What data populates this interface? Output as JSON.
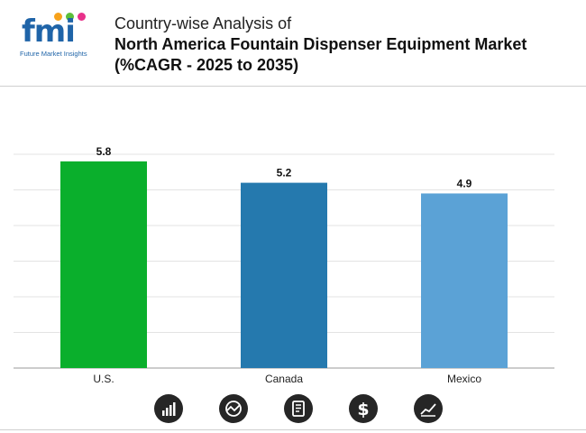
{
  "header": {
    "logo_text": "fmi",
    "logo_subtitle": "Future Market Insights",
    "title_line1": "Country-wise Analysis of",
    "title_line2": "North America Fountain Dispenser Equipment Market",
    "title_line3": "(%CAGR - 2025 to 2035)"
  },
  "colors": {
    "brand": "#1f64a8",
    "grid": "#e3e3e3",
    "axis": "#9a9a9a"
  },
  "chart_data": {
    "type": "bar",
    "title": "North America Fountain Dispenser Equipment Market (%CAGR - 2025 to 2035)",
    "categories": [
      "U.S.",
      "Canada",
      "Mexico"
    ],
    "values": [
      5.8,
      5.2,
      4.9
    ],
    "bar_colors": [
      "#0aaf2c",
      "#2579ae",
      "#5ba2d6"
    ],
    "xlabel": "",
    "ylabel": "",
    "ylim": [
      0,
      6
    ],
    "grid": true,
    "data_labels": true,
    "legend": "none"
  },
  "footer_icons": [
    "bar-chart-icon",
    "globe-chart-icon",
    "report-icon",
    "dollar-icon",
    "trend-chart-icon"
  ]
}
